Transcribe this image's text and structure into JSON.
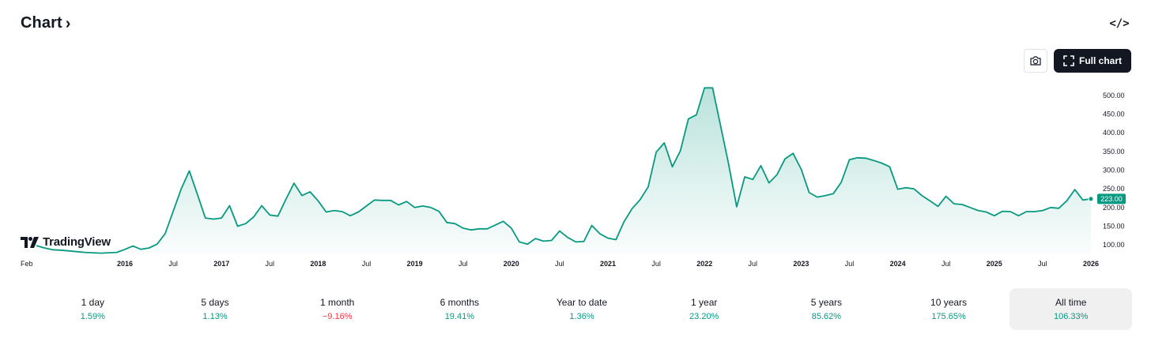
{
  "header": {
    "title": "Chart"
  },
  "toolbar": {
    "full_chart_label": "Full chart"
  },
  "watermark": {
    "text": "TradingView"
  },
  "colors": {
    "line": "#089981",
    "fill_top": "#089981",
    "up": "#089981",
    "down": "#f23645",
    "badge": "#089981"
  },
  "icons": {
    "embed": "code-brackets-icon",
    "snapshot": "camera-icon",
    "fullscreen": "expand-corners-icon"
  },
  "chart_data": {
    "type": "area",
    "y_ticks": [
      100,
      150,
      200,
      250,
      300,
      350,
      400,
      450,
      500
    ],
    "y_tick_labels": [
      "100.00",
      "150.00",
      "200.00",
      "250.00",
      "300.00",
      "350.00",
      "400.00",
      "450.00",
      "500.00"
    ],
    "ylim": [
      75,
      527
    ],
    "x_ticks": [
      {
        "label": "Feb",
        "t": 0,
        "year": false
      },
      {
        "label": "2016",
        "t": 11,
        "year": true
      },
      {
        "label": "Jul",
        "t": 17,
        "year": false
      },
      {
        "label": "2017",
        "t": 23,
        "year": true
      },
      {
        "label": "Jul",
        "t": 29,
        "year": false
      },
      {
        "label": "2018",
        "t": 35,
        "year": true
      },
      {
        "label": "Jul",
        "t": 41,
        "year": false
      },
      {
        "label": "2019",
        "t": 47,
        "year": true
      },
      {
        "label": "Jul",
        "t": 53,
        "year": false
      },
      {
        "label": "2020",
        "t": 59,
        "year": true
      },
      {
        "label": "Jul",
        "t": 65,
        "year": false
      },
      {
        "label": "2021",
        "t": 71,
        "year": true
      },
      {
        "label": "Jul",
        "t": 77,
        "year": false
      },
      {
        "label": "2022",
        "t": 83,
        "year": true
      },
      {
        "label": "Jul",
        "t": 89,
        "year": false
      },
      {
        "label": "2023",
        "t": 95,
        "year": true
      },
      {
        "label": "Jul",
        "t": 101,
        "year": false
      },
      {
        "label": "2024",
        "t": 107,
        "year": true
      },
      {
        "label": "Jul",
        "t": 113,
        "year": false
      },
      {
        "label": "2025",
        "t": 119,
        "year": true
      },
      {
        "label": "Jul",
        "t": 125,
        "year": false
      },
      {
        "label": "2026",
        "t": 131,
        "year": true
      }
    ],
    "values": [
      98,
      92,
      87,
      86,
      84,
      82,
      80,
      79,
      78,
      79,
      80,
      88,
      97,
      88,
      92,
      102,
      130,
      190,
      250,
      298,
      235,
      172,
      169,
      172,
      205,
      150,
      157,
      175,
      205,
      180,
      177,
      222,
      265,
      232,
      242,
      218,
      188,
      192,
      189,
      178,
      188,
      204,
      220,
      219,
      219,
      207,
      216,
      200,
      204,
      200,
      190,
      160,
      157,
      145,
      140,
      143,
      143,
      153,
      163,
      145,
      108,
      102,
      117,
      110,
      112,
      137,
      120,
      108,
      109,
      152,
      130,
      118,
      114,
      162,
      197,
      221,
      255,
      348,
      373,
      309,
      352,
      437,
      448,
      520,
      520,
      418,
      315,
      202,
      282,
      275,
      312,
      266,
      288,
      330,
      345,
      303,
      240,
      228,
      232,
      237,
      268,
      328,
      333,
      332,
      326,
      319,
      309,
      249,
      253,
      250,
      232,
      218,
      203,
      230,
      210,
      208,
      200,
      192,
      188,
      178,
      190,
      189,
      178,
      189,
      189,
      192,
      200,
      198,
      218,
      248,
      220,
      223
    ],
    "last_value_label": "223.00"
  },
  "periods": [
    {
      "label": "1 day",
      "value": "1.59%",
      "dir": "up",
      "active": false
    },
    {
      "label": "5 days",
      "value": "1.13%",
      "dir": "up",
      "active": false
    },
    {
      "label": "1 month",
      "value": "−9.16%",
      "dir": "down",
      "active": false
    },
    {
      "label": "6 months",
      "value": "19.41%",
      "dir": "up",
      "active": false
    },
    {
      "label": "Year to date",
      "value": "1.36%",
      "dir": "up",
      "active": false
    },
    {
      "label": "1 year",
      "value": "23.20%",
      "dir": "up",
      "active": false
    },
    {
      "label": "5 years",
      "value": "85.62%",
      "dir": "up",
      "active": false
    },
    {
      "label": "10 years",
      "value": "175.65%",
      "dir": "up",
      "active": false
    },
    {
      "label": "All time",
      "value": "106.33%",
      "dir": "up",
      "active": true
    }
  ]
}
